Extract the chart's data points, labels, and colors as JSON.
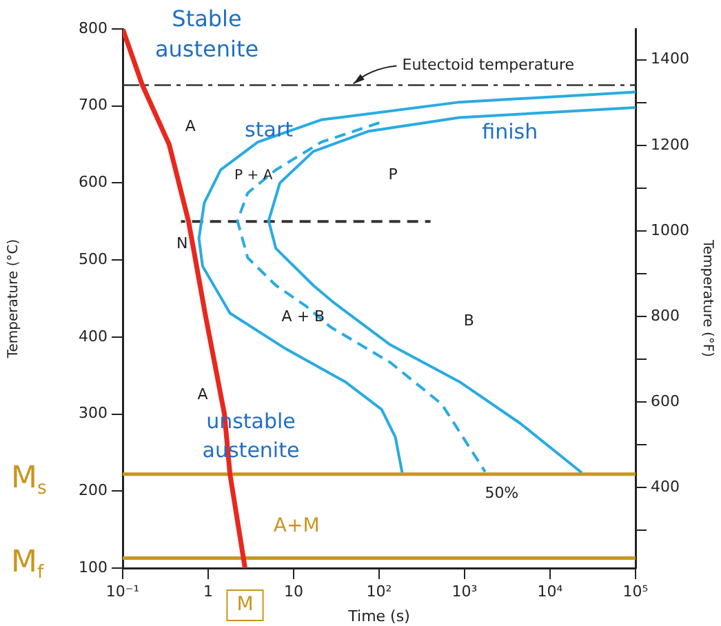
{
  "chart_data": {
    "type": "line",
    "xlabel": "Time (s)",
    "ylabel": "Temperature (°C)",
    "y2label": "Temperature (°F)",
    "log": "x",
    "grid": false,
    "legend": false,
    "marker": "none",
    "xlim": [
      0.1,
      100000
    ],
    "xticks": [
      {
        "value": 0.1,
        "label": "10⁻¹"
      },
      1,
      10,
      {
        "value": 100,
        "label": "10²"
      },
      {
        "value": 1000,
        "label": "10³"
      },
      {
        "value": 10000,
        "label": "10⁴"
      },
      {
        "value": 100000,
        "label": "10⁵"
      }
    ],
    "ylim": [
      100,
      800
    ],
    "yticks": [
      100,
      200,
      300,
      400,
      500,
      600,
      700,
      800
    ],
    "y2lim": [
      212,
      1472
    ],
    "y2ticks": [
      {
        "value": 300,
        "label": null
      },
      400,
      {
        "value": 500,
        "label": null
      },
      600,
      {
        "value": 700,
        "label": null
      },
      800,
      {
        "value": 900,
        "label": null
      },
      1000,
      {
        "value": 1100,
        "label": null
      },
      1200,
      {
        "value": 1300,
        "label": null
      },
      1400
    ],
    "series": [
      {
        "color": "#29abe2",
        "line_style": "solid",
        "x": [
          100000,
          870,
          21,
          3.8,
          1.4,
          0.9,
          0.78,
          0.86,
          1.8,
          8,
          40,
          107,
          155,
          186
        ],
        "values": [
          718,
          705,
          682,
          653,
          617,
          574,
          528,
          492,
          431,
          385,
          342,
          306,
          270,
          224
        ]
      },
      {
        "color": "#29abe2",
        "line_style": "solid",
        "x": [
          100000,
          870,
          74,
          17,
          6.9,
          5.1,
          6.2,
          17,
          30,
          135,
          870,
          4470,
          23400
        ],
        "values": [
          698,
          685,
          667,
          641,
          600,
          551,
          515,
          467,
          444,
          390,
          342,
          288,
          224
        ]
      },
      {
        "color": "#29abe2",
        "line_style": "dashed",
        "x": [
          112,
          21,
          6.2,
          2.9,
          2.2,
          2.9,
          6.2,
          14,
          27,
          135,
          540,
          1740
        ],
        "values": [
          680,
          653,
          617,
          587,
          551,
          503,
          467,
          440,
          413,
          367,
          313,
          225
        ]
      },
      {
        "color": "#333333",
        "line_style": "dashed",
        "x": [
          0.48,
          400
        ],
        "values": [
          550,
          550
        ]
      },
      {
        "color": "#e8281e",
        "line_style": "solid",
        "x": [
          0.1,
          0.17,
          0.35,
          0.59,
          0.93,
          1.55,
          1.8,
          2.7
        ],
        "values": [
          800,
          727,
          650,
          550,
          428,
          300,
          222,
          100
        ]
      }
    ],
    "ref_lines": [
      {
        "axis": "y",
        "value": 727,
        "label": "Eutectoid temperature",
        "color": "#333333",
        "line_style": "dashdot"
      },
      {
        "axis": "y",
        "value": 222,
        "label": "M$_{s}$",
        "color": "#c8961e",
        "line_style": "solid"
      },
      {
        "axis": "y",
        "value": 113,
        "label": "M$_{f}$",
        "color": "#c8961e",
        "line_style": "solid"
      }
    ],
    "annotations": [
      "Stable austenite",
      "A",
      "start",
      "finish",
      "P + A",
      "P",
      "N",
      "A + B",
      "B",
      "A",
      "unstable austenite",
      {
        "text": "50%",
        "x": 1740,
        "y": 225
      },
      "A+M",
      "M"
    ]
  }
}
